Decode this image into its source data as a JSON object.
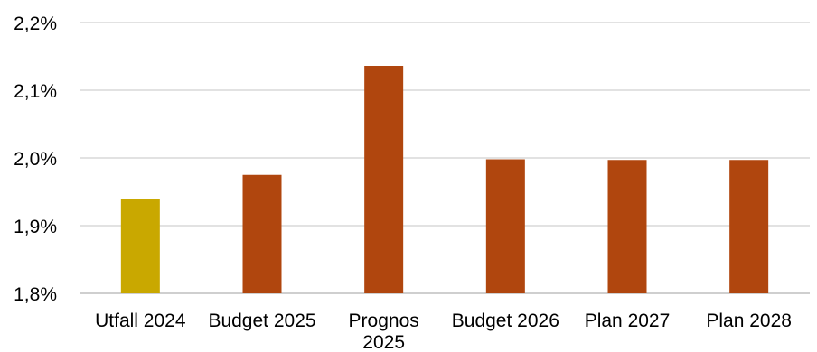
{
  "chart_data": {
    "type": "bar",
    "title": "",
    "xlabel": "",
    "ylabel": "",
    "categories": [
      "Utfall 2024",
      "Budget 2025",
      "Prognos 2025",
      "Budget 2026",
      "Plan 2027",
      "Plan 2028"
    ],
    "values": [
      1.94,
      1.975,
      2.136,
      1.998,
      1.997,
      1.997
    ],
    "bar_colors": [
      "#c9a800",
      "#b0460e",
      "#b0460e",
      "#b0460e",
      "#b0460e",
      "#b0460e"
    ],
    "ylim": [
      1.8,
      2.2
    ],
    "yticks": [
      1.8,
      1.9,
      2.0,
      2.1,
      2.2
    ],
    "ytick_labels": [
      "1,8%",
      "1,9%",
      "2,0%",
      "2,1%",
      "2,2%"
    ],
    "grid": true,
    "legend": "none"
  }
}
